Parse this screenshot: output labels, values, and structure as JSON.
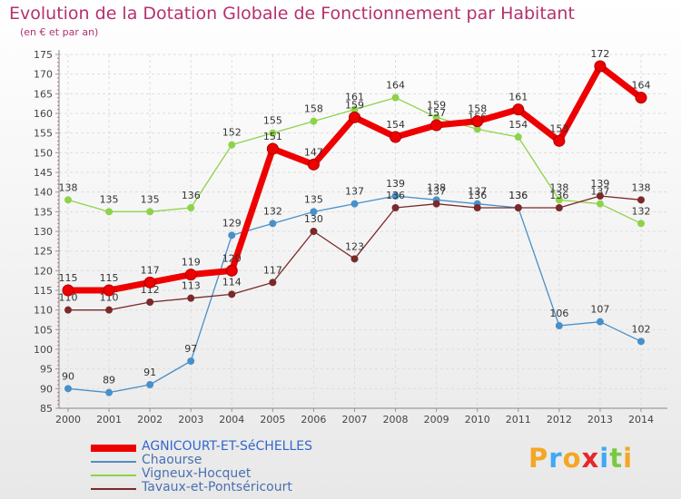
{
  "title": "Evolution de la Dotation Globale de Fonctionnement par Habitant",
  "subtitle": "(en € et par an)",
  "logo": {
    "letters": [
      "P",
      "r",
      "o",
      "x",
      "i",
      "t",
      "i"
    ],
    "colors": [
      "#f5a623",
      "#3fa9f5",
      "#f5a623",
      "#e8262c",
      "#3fa9f5",
      "#7ac943",
      "#f5a623"
    ]
  },
  "chart_data": {
    "type": "line",
    "title": "Evolution de la Dotation Globale de Fonctionnement par Habitant",
    "subtitle": "(en € et par an)",
    "x": [
      "2000",
      "2001",
      "2002",
      "2003",
      "2004",
      "2005",
      "2006",
      "2007",
      "2008",
      "2009",
      "2010",
      "2011",
      "2012",
      "2013",
      "2014"
    ],
    "ylim": [
      85,
      175
    ],
    "yticks": [
      85,
      90,
      95,
      100,
      105,
      110,
      115,
      120,
      125,
      130,
      135,
      140,
      145,
      150,
      155,
      160,
      165,
      170,
      175
    ],
    "grid": true,
    "legend_position": "bottom-left",
    "series": [
      {
        "name": "Vigneux-Hocquet",
        "color": "#8ed24a",
        "width": 1.3,
        "values": [
          138,
          135,
          135,
          136,
          152,
          155,
          158,
          161,
          164,
          159,
          156,
          154,
          138,
          137,
          132
        ]
      },
      {
        "name": "Chaourse",
        "color": "#4a90c8",
        "width": 1.3,
        "values": [
          90,
          89,
          91,
          97,
          129,
          132,
          135,
          137,
          139,
          138,
          137,
          136,
          106,
          107,
          102
        ]
      },
      {
        "name": "Tavaux-et-Pontséricourt",
        "color": "#7a2a2a",
        "width": 1.3,
        "values": [
          110,
          110,
          112,
          113,
          114,
          117,
          130,
          123,
          136,
          137,
          136,
          136,
          136,
          139,
          138
        ]
      },
      {
        "name": "AGNICOURT-ET-SéCHELLES",
        "color": "#ee0000",
        "width": 7,
        "values": [
          115,
          115,
          117,
          119,
          120,
          151,
          147,
          159,
          154,
          157,
          158,
          161,
          153,
          172,
          164
        ]
      }
    ],
    "legend": [
      "AGNICOURT-ET-SéCHELLES",
      "Chaourse",
      "Vigneux-Hocquet",
      "Tavaux-et-Pontséricourt"
    ]
  }
}
